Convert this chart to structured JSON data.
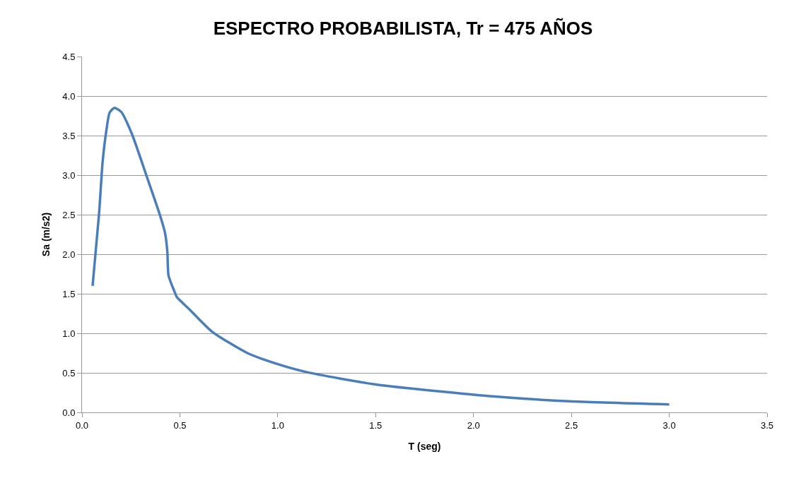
{
  "chart_data": {
    "type": "line",
    "title": "ESPECTRO PROBABILISTA, Tr = 475 AÑOS",
    "xlabel": "T (seg)",
    "ylabel": "Sa (m/s2)",
    "x": [
      0.054,
      0.087,
      0.105,
      0.123,
      0.141,
      0.165,
      0.2,
      0.255,
      0.327,
      0.4,
      0.424,
      0.436,
      0.442,
      0.472,
      0.484,
      0.55,
      0.665,
      0.845,
      1.0,
      1.146,
      1.507,
      2.11,
      2.49,
      3.0
    ],
    "series": [
      {
        "color": "#4a7ebb",
        "values": [
          1.6,
          2.51,
          3.16,
          3.54,
          3.79,
          3.85,
          3.8,
          3.52,
          3.01,
          2.48,
          2.27,
          2.03,
          1.73,
          1.53,
          1.46,
          1.3,
          1.02,
          0.75,
          0.61,
          0.51,
          0.35,
          0.2,
          0.14,
          0.1
        ]
      }
    ],
    "xlim": [
      0,
      3.5
    ],
    "xticks": [
      "0.0",
      0.5,
      "1.0",
      1.5,
      "2.0",
      2.5,
      "3.0",
      3.5
    ],
    "ylim": [
      0,
      4.5
    ],
    "yticks": [
      "0.0",
      0.5,
      "1.0",
      1.5,
      "2.0",
      2.5,
      "3.0",
      3.5,
      "4.0",
      4.5
    ],
    "grid": "y",
    "marker": "none",
    "line_style": "solid"
  }
}
